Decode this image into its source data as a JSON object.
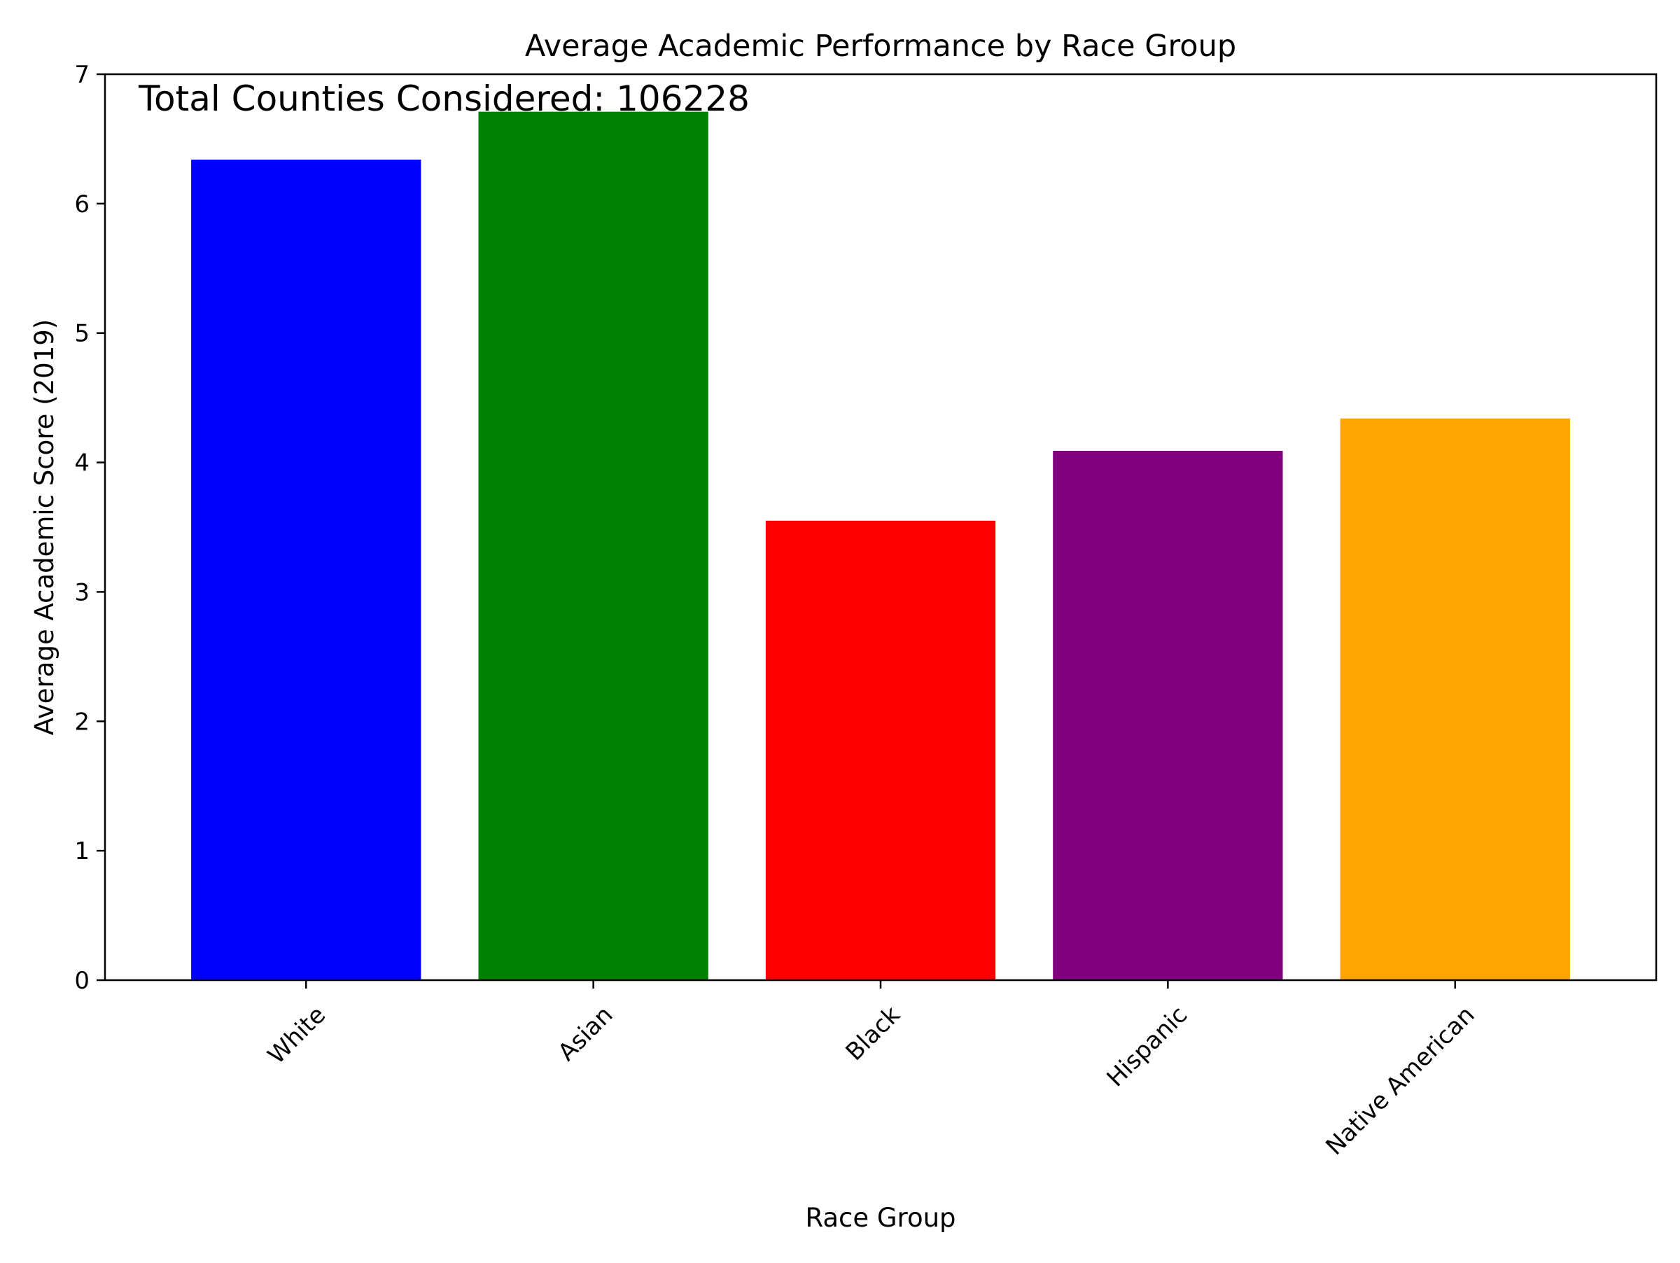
{
  "chart_data": {
    "type": "bar",
    "title": "Average Academic Performance by Race Group",
    "xlabel": "Race Group",
    "ylabel": "Average Academic Score (2019)",
    "annotation": "Total Counties Considered: 106228",
    "categories": [
      "White",
      "Asian",
      "Black",
      "Hispanic",
      "Native American"
    ],
    "values": [
      6.34,
      6.71,
      3.55,
      4.09,
      4.34
    ],
    "colors": [
      "#0000ff",
      "#008000",
      "#ff0000",
      "#800080",
      "#ffa500"
    ],
    "ylim": [
      0,
      7
    ],
    "yticks": [
      "0",
      "1",
      "2",
      "3",
      "4",
      "5",
      "6",
      "7"
    ],
    "grid": false,
    "legend": "none"
  }
}
